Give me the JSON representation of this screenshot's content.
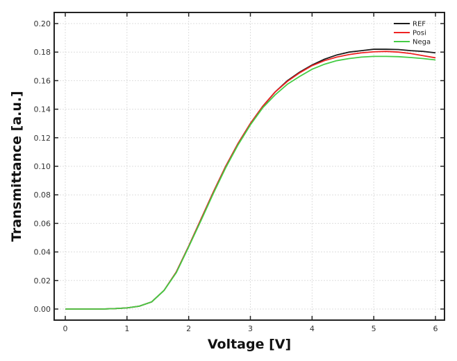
{
  "chart_data": {
    "type": "line",
    "title": "",
    "xlabel": "Voltage [V]",
    "ylabel": "Transmittance [a.u.]",
    "xlim": [
      -0.18,
      6.15
    ],
    "ylim": [
      -0.008,
      0.208
    ],
    "xticks": [
      0,
      1,
      2,
      3,
      4,
      5,
      6
    ],
    "yticks": [
      "0.00",
      "0.02",
      "0.04",
      "0.06",
      "0.08",
      "0.10",
      "0.12",
      "0.14",
      "0.16",
      "0.18",
      "0.20"
    ],
    "grid": true,
    "legend_position": "top-right",
    "x": [
      0,
      0.2,
      0.4,
      0.6,
      0.8,
      1.0,
      1.2,
      1.4,
      1.6,
      1.8,
      2.0,
      2.2,
      2.4,
      2.6,
      2.8,
      3.0,
      3.2,
      3.4,
      3.6,
      3.8,
      4.0,
      4.2,
      4.4,
      4.6,
      4.8,
      5.0,
      5.2,
      5.4,
      5.6,
      5.8,
      6.0
    ],
    "series": [
      {
        "name": "REF",
        "color": "#1a1a1a",
        "values": [
          0,
          0,
          0,
          0,
          0.0003,
          0.0008,
          0.002,
          0.005,
          0.013,
          0.026,
          0.044,
          0.063,
          0.082,
          0.1,
          0.116,
          0.13,
          0.142,
          0.152,
          0.16,
          0.166,
          0.171,
          0.175,
          0.178,
          0.18,
          0.181,
          0.182,
          0.182,
          0.1818,
          0.181,
          0.1805,
          0.1795
        ]
      },
      {
        "name": "Posi",
        "color": "#ee2222",
        "values": [
          0,
          0,
          0,
          0,
          0.0003,
          0.0008,
          0.002,
          0.005,
          0.013,
          0.026,
          0.044,
          0.063,
          0.082,
          0.1,
          0.116,
          0.13,
          0.142,
          0.152,
          0.1595,
          0.1655,
          0.1705,
          0.174,
          0.1765,
          0.1783,
          0.1795,
          0.1802,
          0.1805,
          0.18,
          0.179,
          0.1775,
          0.176
        ]
      },
      {
        "name": "Nega",
        "color": "#44cc44",
        "values": [
          0,
          0,
          0,
          0,
          0.0003,
          0.0008,
          0.002,
          0.005,
          0.013,
          0.0255,
          0.0435,
          0.062,
          0.081,
          0.099,
          0.115,
          0.129,
          0.141,
          0.15,
          0.1575,
          0.163,
          0.168,
          0.1715,
          0.174,
          0.1755,
          0.1765,
          0.177,
          0.177,
          0.1768,
          0.1762,
          0.1755,
          0.1745
        ]
      }
    ]
  }
}
